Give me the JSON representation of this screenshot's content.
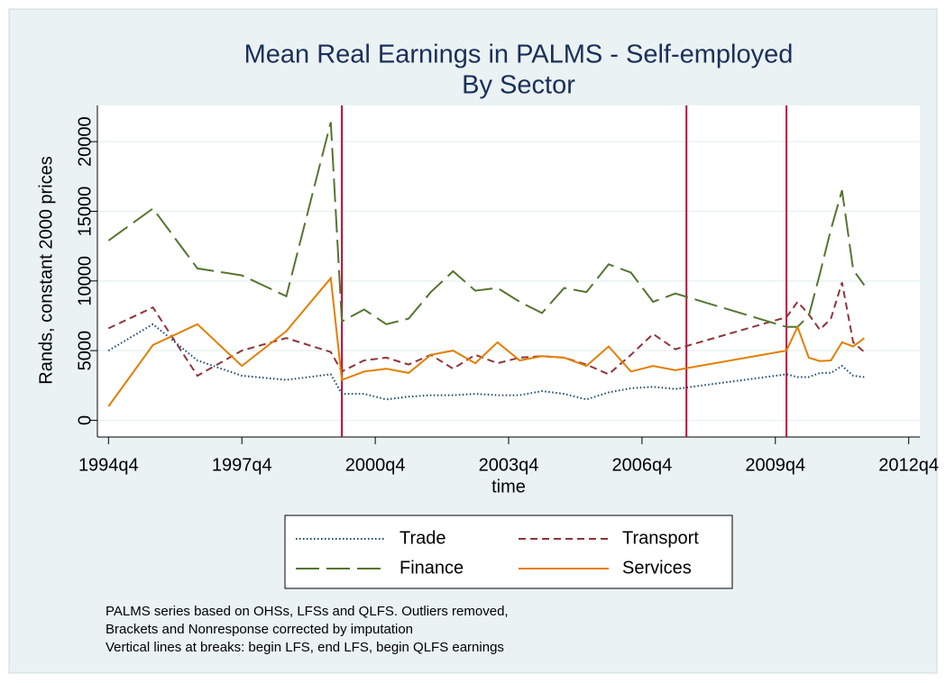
{
  "chart_data": {
    "type": "line",
    "title": "Mean Real Earnings in PALMS - Self-employed",
    "subtitle": "By Sector",
    "x_label": "time",
    "y_label": "Rands, constant 2000 prices",
    "x": [
      "1994q4",
      "1995q4",
      "1996q4",
      "1997q4",
      "1998q4",
      "1999q4",
      "2000q1",
      "2000q3",
      "2001q1",
      "2001q3",
      "2002q1",
      "2002q3",
      "2003q1",
      "2003q3",
      "2004q1",
      "2004q3",
      "2005q1",
      "2005q3",
      "2006q1",
      "2006q3",
      "2007q1",
      "2007q3",
      "2010q1",
      "2010q2",
      "2010q3",
      "2010q4",
      "2011q1",
      "2011q2",
      "2011q3",
      "2011q4"
    ],
    "series": [
      {
        "name": "Trade",
        "color": "#1a476f",
        "dash": "dotted",
        "values": [
          5000,
          6900,
          4300,
          3200,
          2900,
          3300,
          1900,
          1900,
          1500,
          1700,
          1800,
          1800,
          1900,
          1800,
          1800,
          2100,
          1900,
          1500,
          2000,
          2300,
          2400,
          2250,
          3300,
          3100,
          3100,
          3400,
          3400,
          3900,
          3200,
          3100
        ]
      },
      {
        "name": "Transport",
        "color": "#90353b",
        "dash": "short",
        "values": [
          6600,
          8100,
          3200,
          5000,
          5900,
          4900,
          3500,
          4300,
          4500,
          4000,
          4700,
          3700,
          4700,
          4100,
          4500,
          4600,
          4500,
          4000,
          3300,
          4700,
          6200,
          5100,
          7400,
          8500,
          7600,
          6500,
          7300,
          9900,
          5600,
          4900
        ]
      },
      {
        "name": "Finance",
        "color": "#55752f",
        "dash": "long",
        "values": [
          12900,
          15200,
          10900,
          10400,
          8900,
          21400,
          7100,
          7950,
          6900,
          7300,
          9200,
          10700,
          9300,
          9500,
          8500,
          7700,
          9500,
          9200,
          11200,
          10600,
          8500,
          9100,
          6700,
          6700,
          7500,
          10500,
          13700,
          16500,
          10800,
          9700
        ]
      },
      {
        "name": "Services",
        "color": "#e37e00",
        "dash": "solid",
        "values": [
          1000,
          5400,
          6900,
          3900,
          6400,
          10200,
          2900,
          3500,
          3700,
          3400,
          4700,
          5000,
          4100,
          5600,
          4300,
          4600,
          4500,
          3900,
          5300,
          3500,
          3900,
          3600,
          5000,
          6700,
          4500,
          4250,
          4300,
          5600,
          5300,
          5900
        ]
      }
    ],
    "xlim": [
      "1994q3",
      "2013q1"
    ],
    "xticks": [
      "1994q4",
      "1997q4",
      "2000q4",
      "2003q4",
      "2006q4",
      "2009q4",
      "2012q4"
    ],
    "ylim": [
      -1200,
      22600
    ],
    "yticks": [
      0,
      5000,
      10000,
      15000,
      20000
    ],
    "grid": true,
    "vlines": {
      "x": [
        "2000q1",
        "2007q4",
        "2010q1"
      ],
      "color": "#c10534"
    },
    "legend_position": "bottom",
    "notes": [
      "PALMS series based on OHSs, LFSs and QLFS. Outliers removed,",
      "Brackets and Nonresponse corrected by imputation",
      "Vertical lines at breaks: begin LFS, end LFS, begin QLFS earnings"
    ]
  }
}
